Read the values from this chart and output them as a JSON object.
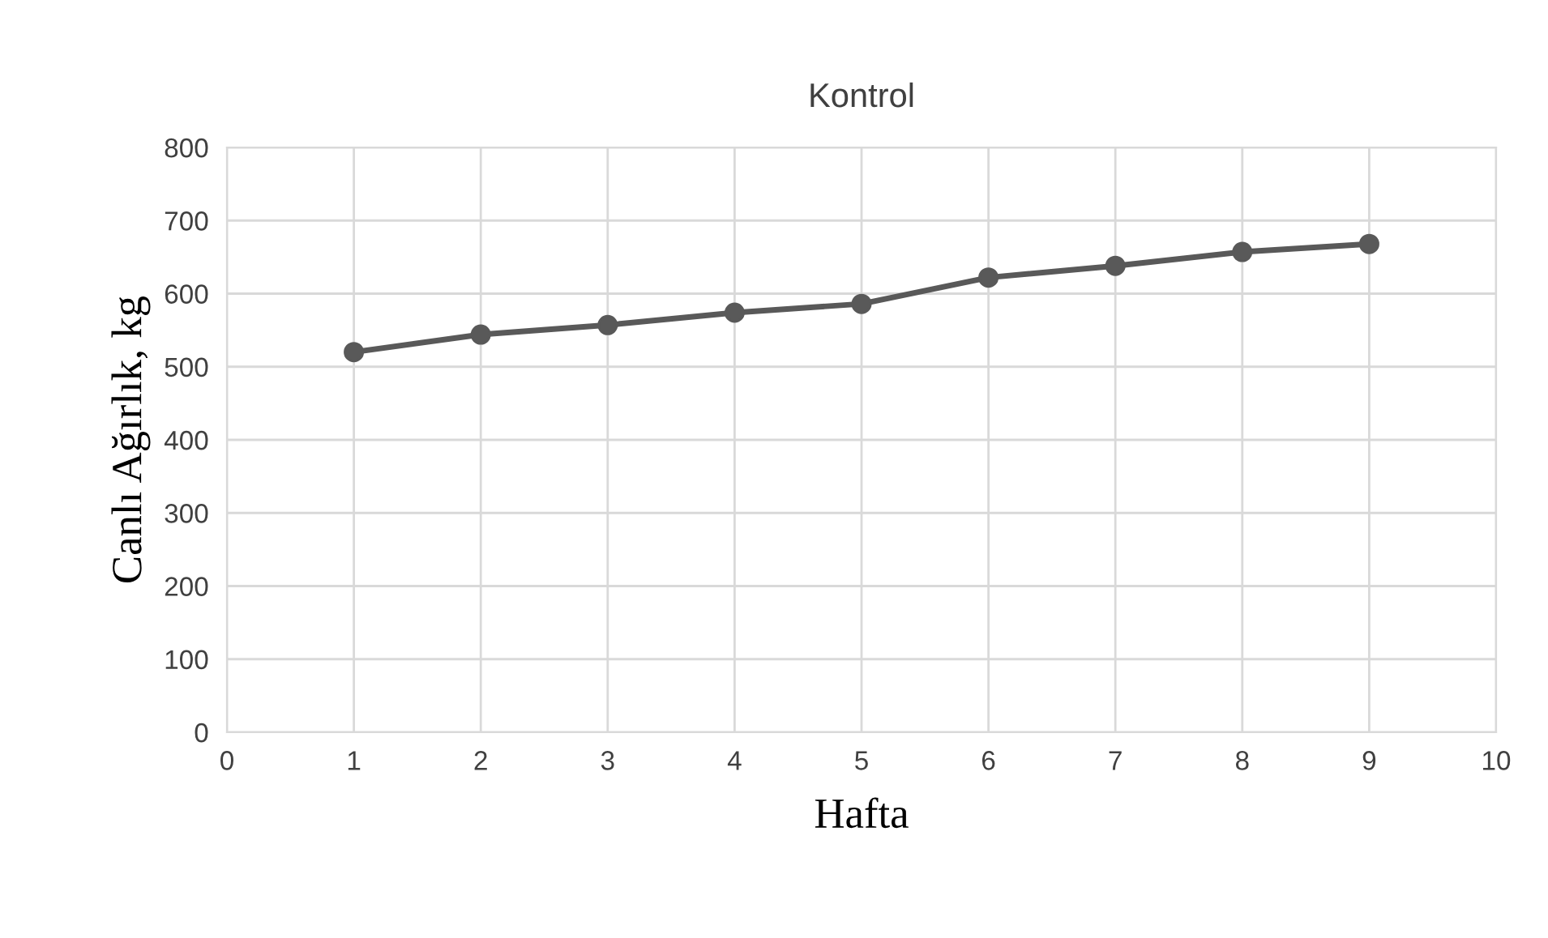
{
  "chart_data": {
    "type": "line",
    "title": "Kontrol",
    "xlabel": "Hafta",
    "ylabel": "Canlı Ağırlık, kg",
    "x": [
      1,
      2,
      3,
      4,
      5,
      6,
      7,
      8,
      9
    ],
    "series": [
      {
        "color": "#595959",
        "values": [
          520,
          544,
          557,
          574,
          586,
          622,
          638,
          657,
          668
        ]
      }
    ],
    "xlim": [
      0,
      10
    ],
    "xticks": [
      0,
      1,
      2,
      3,
      4,
      5,
      6,
      7,
      8,
      9,
      10
    ],
    "ylim": [
      0,
      800
    ],
    "yticks": [
      0,
      100,
      200,
      300,
      400,
      500,
      600,
      700,
      800
    ],
    "grid": true,
    "marker": "circle",
    "line_style": "solid",
    "legend": false
  }
}
